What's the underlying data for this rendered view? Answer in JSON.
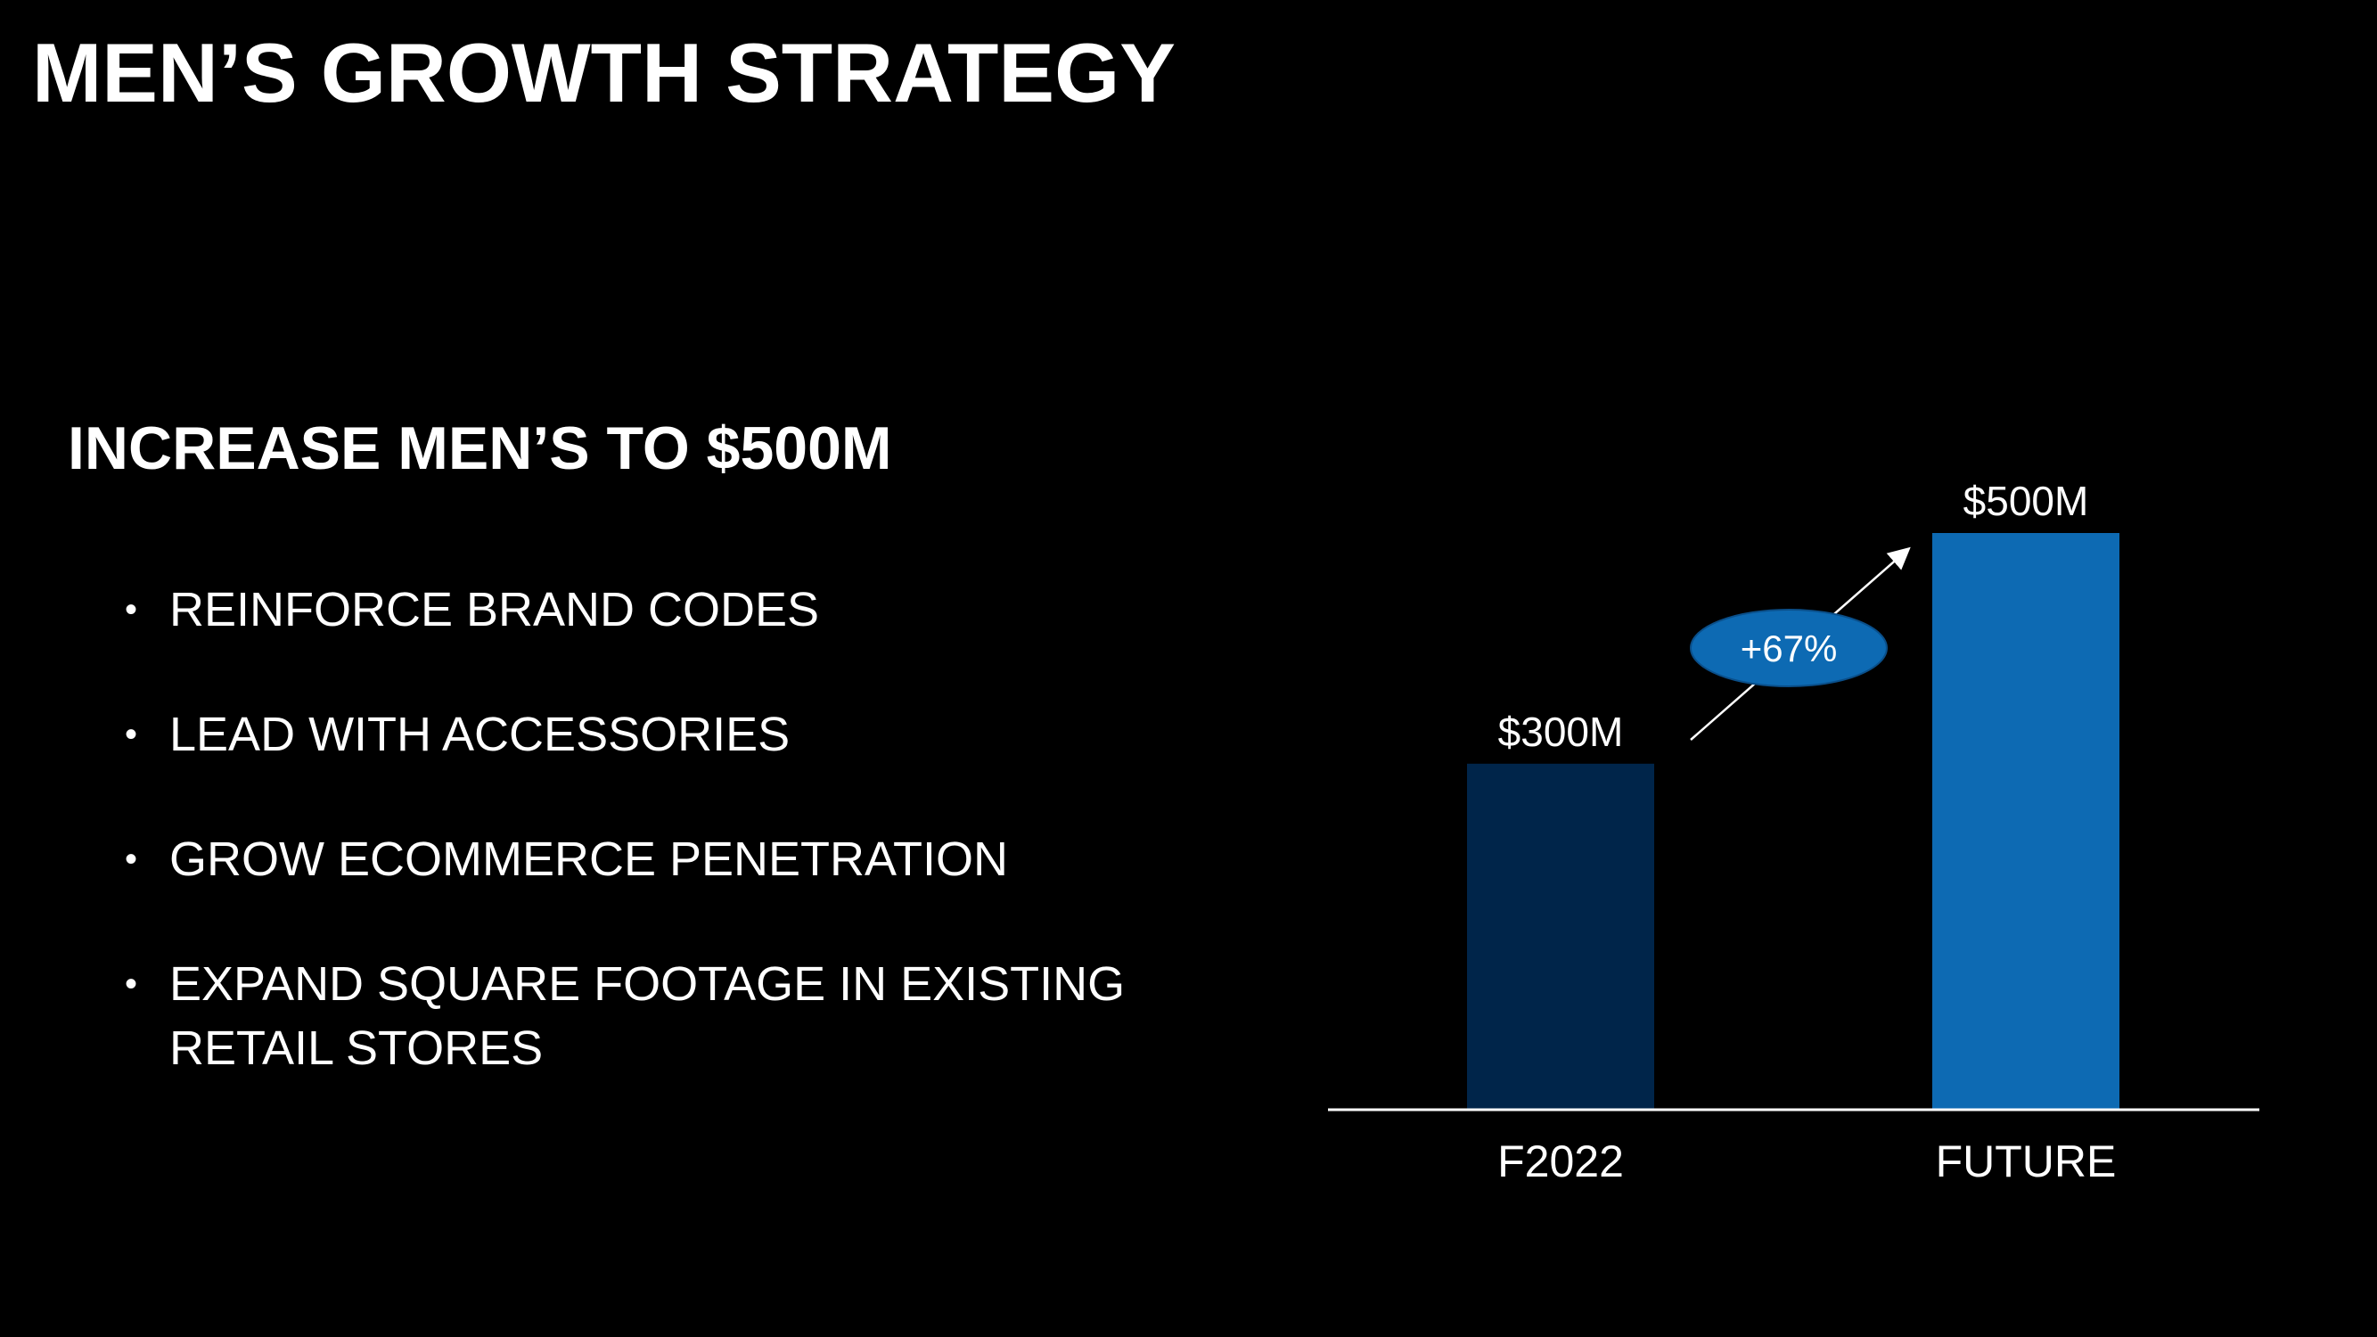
{
  "title": "MEN’S GROWTH STRATEGY",
  "subtitle": "INCREASE MEN’S TO $500M",
  "bullets": [
    {
      "text": "REINFORCE BRAND CODES"
    },
    {
      "text": "LEAD WITH ACCESSORIES"
    },
    {
      "text": "GROW ECOMMERCE PENETRATION"
    },
    {
      "text": "EXPAND SQUARE FOOTAGE IN EXISTING RETAIL STORES"
    }
  ],
  "bullet_glyph": "•",
  "chart_data": {
    "type": "bar",
    "title": "",
    "xlabel": "",
    "ylabel": "",
    "categories": [
      "F2022",
      "FUTURE"
    ],
    "values": [
      300,
      500
    ],
    "data_labels": [
      "$300M",
      "$500M"
    ],
    "bar_colors": [
      "#00254A",
      "#0D6AB3"
    ],
    "ylim": [
      0,
      500
    ],
    "grid": false,
    "legend": "none",
    "annotation": {
      "text": "+67%",
      "shape": "ellipse",
      "fill": "#0D6AB3",
      "arrow": "from F2022 bar to FUTURE bar"
    }
  },
  "colors": {
    "background": "#000000",
    "text": "#FFFFFF",
    "axis": "#FFFFFF"
  }
}
